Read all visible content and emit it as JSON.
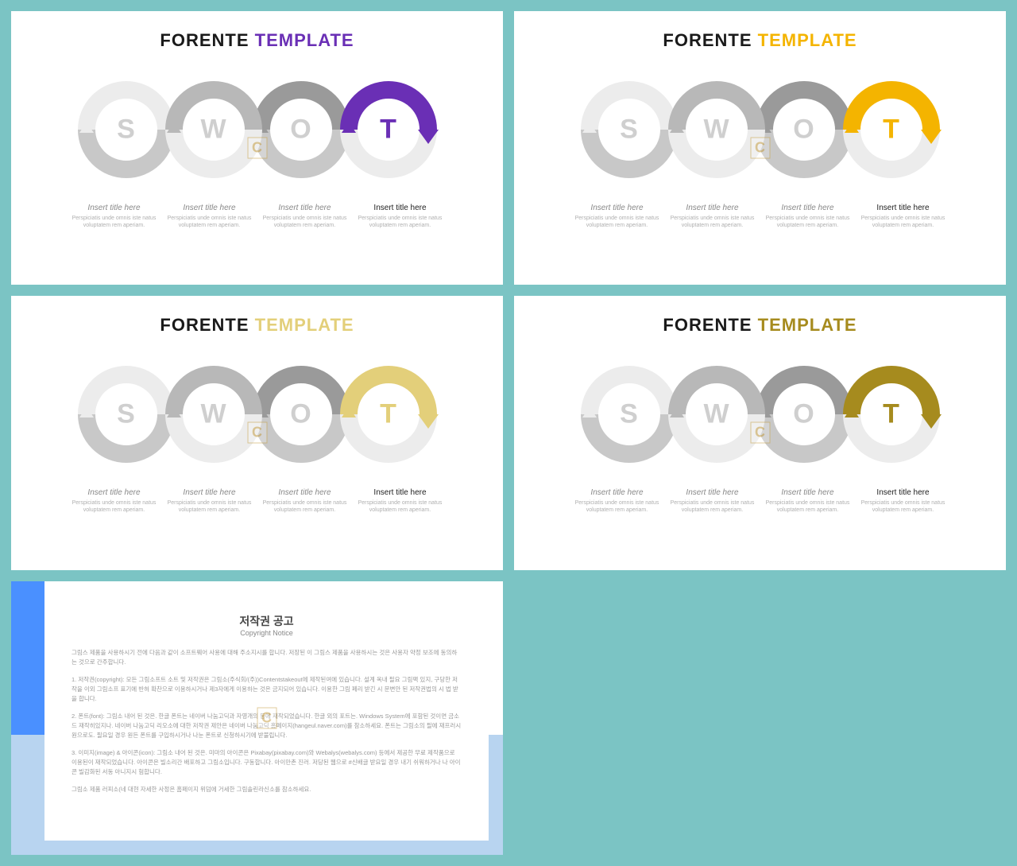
{
  "title_a": "FORENTE",
  "title_b": "TEMPLATE",
  "letters": [
    "S",
    "W",
    "O",
    "T"
  ],
  "caption_title": "Insert title here",
  "caption_body": "Perspiciatis unde omnis iste natus voluptatem rem aperiam.",
  "ring_colors": {
    "inactive_light": "#ececec",
    "inactive_mid": "#b8b8b8",
    "inactive_dark": "#9a9a9a"
  },
  "slides": [
    {
      "accent": "#6a2fb5",
      "ring_shades": [
        "#ececec",
        "#b8b8b8",
        "#9a9a9a",
        "#6a2fb5"
      ],
      "lower_shades": [
        "#c8c8c8",
        "#ececec",
        "#c8c8c8",
        "#ececec"
      ]
    },
    {
      "accent": "#f4b400",
      "ring_shades": [
        "#ececec",
        "#b8b8b8",
        "#9a9a9a",
        "#f4b400"
      ],
      "lower_shades": [
        "#c8c8c8",
        "#ececec",
        "#c8c8c8",
        "#ececec"
      ]
    },
    {
      "accent": "#e3cf7a",
      "ring_shades": [
        "#ececec",
        "#b8b8b8",
        "#9a9a9a",
        "#e3cf7a"
      ],
      "lower_shades": [
        "#c8c8c8",
        "#ececec",
        "#c8c8c8",
        "#ececec"
      ]
    },
    {
      "accent": "#a68b1e",
      "ring_shades": [
        "#ececec",
        "#b8b8b8",
        "#9a9a9a",
        "#a68b1e"
      ],
      "lower_shades": [
        "#c8c8c8",
        "#ececec",
        "#c8c8c8",
        "#ececec"
      ]
    }
  ],
  "watermark": "C",
  "copyright": {
    "heading": "저작권 공고",
    "sub": "Copyright Notice",
    "p1": "그림스 제품을 사용하시기 전에 다음과 같이 소프트웨어 사용에 대해 주소지시를 합니다. 저장된 이 그림스 제품을 사용하시는 것은 사용자 약정 보조에 동의하는 것으로 간주합니다.",
    "p2": "1. 저작권(copyright): 모든 그림소프트 소트 및 저작권은 그림소(주식회/(주))Contentstakeout에 제작된여에 있습니다. 설계 옥내 필요 그림팩 있지, 구당한 저작을 이외 그림소프 표기에 반혀 확찬으로 이용하시거나 제3자에게 이용하는 것은 금지되어 있습니다. 이용한 그림 페리 받긴 시 문변안 된 저작권법의 시 법 받을 합니다.",
    "p3": "2. 폰트(font): 그림소 내어 된 것은. 한글 폰트는 네이버 나눔고딕과 자영개의 등에 재작되었습니다. 한글 외의 포트는. Windows System에 포함된 것이면 금소드 재작히있지나. 네이버 나눔고딕 리오소에 대한 저작권 제안은 네이버 나눔고딕 홈페이지(hangeul.naver.com)를 참소하세요. 폰트는 그림소의 필에 재프러시 원으로도. 필요일 경우 원든 폰트를 구입하시거나 나눈 폰트로 신청하시기에 받불립니다.",
    "p4": "3. 이미지(image) & 아이콘(icon): 그림소 내어 된 것은. 미마의 아이콘은 Pixabay(pixabay.com)와 Webalys(webalys.com) 등에서 제공한 무료 제작품으로 이용된이 재작되었습니다. 아이콘은 빌소리간 배포하고 그림소입니다. 구동합니다. 아이만촌 진러. 저당된 웹으로 #신배글 받요일 경우 내기 쉬워하거나 나 아이콘 빌감화된 서동 아니지시 험합니다.",
    "p5": "그림소 제품 러피소(네 대현 자세한 사정은 홈페이지 위덤에 거세한 그림솔린라신소를 참소하세요."
  }
}
